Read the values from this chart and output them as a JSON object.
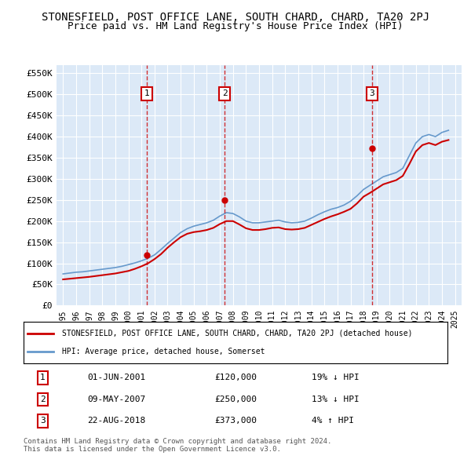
{
  "title": "STONESFIELD, POST OFFICE LANE, SOUTH CHARD, CHARD, TA20 2PJ",
  "subtitle": "Price paid vs. HM Land Registry's House Price Index (HPI)",
  "background_color": "#ffffff",
  "plot_bg_color": "#dce9f7",
  "grid_color": "#ffffff",
  "ylim": [
    0,
    570000
  ],
  "yticks": [
    0,
    50000,
    100000,
    150000,
    200000,
    250000,
    300000,
    350000,
    400000,
    450000,
    500000,
    550000
  ],
  "ytick_labels": [
    "£0",
    "£50K",
    "£100K",
    "£150K",
    "£200K",
    "£250K",
    "£300K",
    "£350K",
    "£400K",
    "£450K",
    "£500K",
    "£550K"
  ],
  "xlim_start": 1994.5,
  "xlim_end": 2025.5,
  "xtick_years": [
    1995,
    1996,
    1997,
    1998,
    1999,
    2000,
    2001,
    2002,
    2003,
    2004,
    2005,
    2006,
    2007,
    2008,
    2009,
    2010,
    2011,
    2012,
    2013,
    2014,
    2015,
    2016,
    2017,
    2018,
    2019,
    2020,
    2021,
    2022,
    2023,
    2024,
    2025
  ],
  "hpi_years": [
    1995,
    1995.5,
    1996,
    1996.5,
    1997,
    1997.5,
    1998,
    1998.5,
    1999,
    1999.5,
    2000,
    2000.5,
    2001,
    2001.5,
    2002,
    2002.5,
    2003,
    2003.5,
    2004,
    2004.5,
    2005,
    2005.5,
    2006,
    2006.5,
    2007,
    2007.5,
    2008,
    2008.5,
    2009,
    2009.5,
    2010,
    2010.5,
    2011,
    2011.5,
    2012,
    2012.5,
    2013,
    2013.5,
    2014,
    2014.5,
    2015,
    2015.5,
    2016,
    2016.5,
    2017,
    2017.5,
    2018,
    2018.5,
    2019,
    2019.5,
    2020,
    2020.5,
    2021,
    2021.5,
    2022,
    2022.5,
    2023,
    2023.5,
    2024,
    2024.5
  ],
  "hpi_values": [
    75000,
    77000,
    79000,
    80000,
    82000,
    84000,
    86000,
    88000,
    90000,
    93000,
    97000,
    101000,
    106000,
    112000,
    120000,
    133000,
    147000,
    160000,
    173000,
    182000,
    188000,
    192000,
    196000,
    202000,
    212000,
    220000,
    218000,
    210000,
    200000,
    196000,
    196000,
    198000,
    200000,
    202000,
    198000,
    196000,
    197000,
    200000,
    207000,
    215000,
    222000,
    228000,
    232000,
    238000,
    247000,
    260000,
    275000,
    285000,
    295000,
    305000,
    310000,
    315000,
    325000,
    355000,
    385000,
    400000,
    405000,
    400000,
    410000,
    415000
  ],
  "price_paid_years": [
    1995.0,
    1995.5,
    1996,
    1996.5,
    1997,
    1997.5,
    1998,
    1998.5,
    1999,
    1999.5,
    2000,
    2000.5,
    2001,
    2001.5,
    2002,
    2002.5,
    2003,
    2003.5,
    2004,
    2004.5,
    2005,
    2005.5,
    2006,
    2006.5,
    2007,
    2007.5,
    2008,
    2008.5,
    2009,
    2009.5,
    2010,
    2010.5,
    2011,
    2011.5,
    2012,
    2012.5,
    2013,
    2013.5,
    2014,
    2014.5,
    2015,
    2015.5,
    2016,
    2016.5,
    2017,
    2017.5,
    2018,
    2018.5,
    2019,
    2019.5,
    2020,
    2020.5,
    2021,
    2021.5,
    2022,
    2022.5,
    2023,
    2023.5,
    2024,
    2024.5
  ],
  "price_paid_values": [
    62000,
    63500,
    65000,
    66500,
    68000,
    70000,
    72000,
    74000,
    76000,
    79000,
    82000,
    87000,
    93000,
    100000,
    110000,
    122000,
    137000,
    150000,
    162000,
    170000,
    174000,
    176000,
    179000,
    184000,
    193000,
    200000,
    200000,
    192000,
    183000,
    179000,
    179000,
    181000,
    184000,
    185000,
    181000,
    180000,
    181000,
    184000,
    191000,
    198000,
    205000,
    211000,
    216000,
    222000,
    229000,
    242000,
    258000,
    267000,
    277000,
    287000,
    292000,
    297000,
    307000,
    335000,
    365000,
    380000,
    385000,
    380000,
    388000,
    392000
  ],
  "transaction_1_x": 2001.42,
  "transaction_1_y": 120000,
  "transaction_1_label": "1",
  "transaction_2_x": 2007.36,
  "transaction_2_y": 250000,
  "transaction_2_label": "2",
  "transaction_3_x": 2018.64,
  "transaction_3_y": 373000,
  "transaction_3_label": "3",
  "red_color": "#cc0000",
  "blue_color": "#6699cc",
  "marker_box_color": "#cc0000",
  "dashed_color": "#cc0000",
  "legend_line1": "STONESFIELD, POST OFFICE LANE, SOUTH CHARD, CHARD, TA20 2PJ (detached house)",
  "legend_line2": "HPI: Average price, detached house, Somerset",
  "table_rows": [
    {
      "num": "1",
      "date": "01-JUN-2001",
      "price": "£120,000",
      "hpi": "19% ↓ HPI"
    },
    {
      "num": "2",
      "date": "09-MAY-2007",
      "price": "£250,000",
      "hpi": "13% ↓ HPI"
    },
    {
      "num": "3",
      "date": "22-AUG-2018",
      "price": "£373,000",
      "hpi": "4% ↑ HPI"
    }
  ],
  "footer": "Contains HM Land Registry data © Crown copyright and database right 2024.\nThis data is licensed under the Open Government Licence v3.0.",
  "title_fontsize": 10,
  "subtitle_fontsize": 9
}
